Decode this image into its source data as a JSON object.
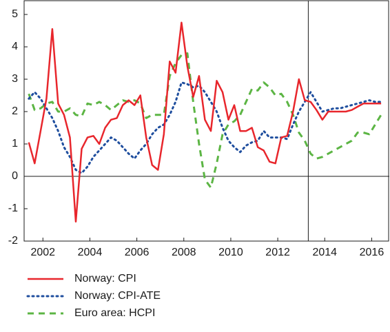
{
  "chart_data": {
    "type": "line",
    "x": [
      2001.4,
      2001.65,
      2001.9,
      2002.15,
      2002.4,
      2002.65,
      2002.9,
      2003.15,
      2003.4,
      2003.65,
      2003.9,
      2004.15,
      2004.4,
      2004.65,
      2004.9,
      2005.15,
      2005.4,
      2005.65,
      2005.9,
      2006.15,
      2006.4,
      2006.65,
      2006.9,
      2007.15,
      2007.4,
      2007.65,
      2007.9,
      2008.15,
      2008.4,
      2008.65,
      2008.9,
      2009.15,
      2009.4,
      2009.65,
      2009.9,
      2010.15,
      2010.4,
      2010.65,
      2010.9,
      2011.15,
      2011.4,
      2011.65,
      2011.9,
      2012.15,
      2012.4,
      2012.65,
      2012.9,
      2013.15,
      2013.4,
      2013.65,
      2013.9,
      2014.15,
      2014.4,
      2014.65,
      2014.9,
      2015.15,
      2015.4,
      2015.65,
      2015.9,
      2016.15,
      2016.4
    ],
    "series": [
      {
        "name": "Norway: CPI",
        "color": "#e8262c",
        "dash": "solid",
        "values": [
          1.05,
          0.4,
          1.4,
          2.4,
          4.55,
          2.25,
          1.9,
          1.2,
          -1.4,
          0.85,
          1.2,
          1.25,
          1.0,
          1.5,
          1.75,
          1.8,
          2.2,
          2.35,
          2.2,
          2.5,
          1.2,
          0.35,
          0.2,
          1.3,
          3.55,
          3.2,
          4.75,
          3.4,
          2.45,
          3.1,
          1.75,
          1.4,
          2.95,
          2.6,
          1.75,
          2.2,
          1.4,
          1.4,
          1.5,
          0.9,
          0.8,
          0.45,
          0.4,
          1.2,
          1.25,
          2.0,
          3.0,
          2.35,
          2.3,
          2.05,
          1.75,
          2.0,
          2.0,
          2.0,
          2.0,
          2.05,
          2.15,
          2.25,
          2.25,
          2.25,
          2.25
        ]
      },
      {
        "name": "Norway: CPI-ATE",
        "color": "#1f4e9e",
        "dash": "dotted",
        "values": [
          2.4,
          2.6,
          2.4,
          2.1,
          1.8,
          1.4,
          0.9,
          0.6,
          0.2,
          0.1,
          0.3,
          0.6,
          0.8,
          1.0,
          1.2,
          1.1,
          0.9,
          0.7,
          0.55,
          0.8,
          1.0,
          1.3,
          1.5,
          1.6,
          1.9,
          2.3,
          2.9,
          2.85,
          2.75,
          2.8,
          2.6,
          2.3,
          2.0,
          1.5,
          1.1,
          0.9,
          0.75,
          0.95,
          1.05,
          1.1,
          1.4,
          1.2,
          1.2,
          1.2,
          1.15,
          1.6,
          2.0,
          2.3,
          2.6,
          2.3,
          2.0,
          2.05,
          2.1,
          2.1,
          2.15,
          2.2,
          2.25,
          2.3,
          2.35,
          2.3,
          2.3
        ]
      },
      {
        "name": "Euro area: HCPI",
        "color": "#5cb544",
        "dash": "dashed",
        "values": [
          2.55,
          2.05,
          2.1,
          2.25,
          2.3,
          2.0,
          2.0,
          2.1,
          1.9,
          1.85,
          2.25,
          2.2,
          2.3,
          2.2,
          2.05,
          2.2,
          2.35,
          2.3,
          2.35,
          2.25,
          1.8,
          1.9,
          1.9,
          1.9,
          3.1,
          3.5,
          3.75,
          3.8,
          2.3,
          1.0,
          -0.1,
          -0.35,
          0.4,
          1.3,
          1.6,
          1.7,
          1.9,
          2.3,
          2.7,
          2.65,
          2.9,
          2.75,
          2.5,
          2.55,
          2.3,
          1.9,
          1.35,
          1.1,
          0.7,
          0.55,
          0.6,
          0.7,
          0.8,
          0.9,
          1.0,
          1.1,
          1.35,
          1.35,
          1.3,
          1.6,
          1.9
        ]
      }
    ],
    "xlim": [
      2001.2,
      2016.75
    ],
    "xticks": [
      2002,
      2004,
      2006,
      2008,
      2010,
      2012,
      2014,
      2016
    ],
    "ylim": [
      -2,
      5
    ],
    "yticks": [
      -2,
      -1,
      0,
      1,
      2,
      3,
      4,
      5
    ],
    "vline_x": 2013.3,
    "grid": false
  }
}
